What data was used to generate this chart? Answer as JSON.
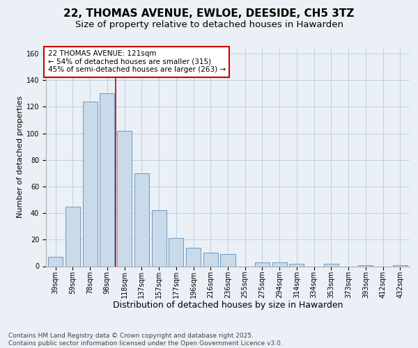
{
  "title": "22, THOMAS AVENUE, EWLOE, DEESIDE, CH5 3TZ",
  "subtitle": "Size of property relative to detached houses in Hawarden",
  "xlabel": "Distribution of detached houses by size in Hawarden",
  "ylabel": "Number of detached properties",
  "categories": [
    "39sqm",
    "59sqm",
    "78sqm",
    "98sqm",
    "118sqm",
    "137sqm",
    "157sqm",
    "177sqm",
    "196sqm",
    "216sqm",
    "236sqm",
    "255sqm",
    "275sqm",
    "294sqm",
    "314sqm",
    "334sqm",
    "353sqm",
    "373sqm",
    "393sqm",
    "412sqm",
    "432sqm"
  ],
  "values": [
    7,
    45,
    124,
    130,
    102,
    70,
    42,
    21,
    14,
    10,
    9,
    0,
    3,
    3,
    2,
    0,
    2,
    0,
    1,
    0,
    1
  ],
  "bar_color": "#c9daea",
  "bar_edge_color": "#5b8db8",
  "annotation_text": "22 THOMAS AVENUE: 121sqm\n← 54% of detached houses are smaller (315)\n45% of semi-detached houses are larger (263) →",
  "annotation_box_color": "#ffffff",
  "annotation_box_edge_color": "#cc0000",
  "vline_color": "#cc0000",
  "ylim": [
    0,
    165
  ],
  "yticks": [
    0,
    20,
    40,
    60,
    80,
    100,
    120,
    140,
    160
  ],
  "grid_color": "#b0c4d8",
  "background_color": "#eaf0f6",
  "footer": "Contains HM Land Registry data © Crown copyright and database right 2025.\nContains public sector information licensed under the Open Government Licence v3.0.",
  "title_fontsize": 11,
  "subtitle_fontsize": 9.5,
  "xlabel_fontsize": 9,
  "ylabel_fontsize": 8,
  "tick_fontsize": 7,
  "annotation_fontsize": 7.5,
  "footer_fontsize": 6.5
}
